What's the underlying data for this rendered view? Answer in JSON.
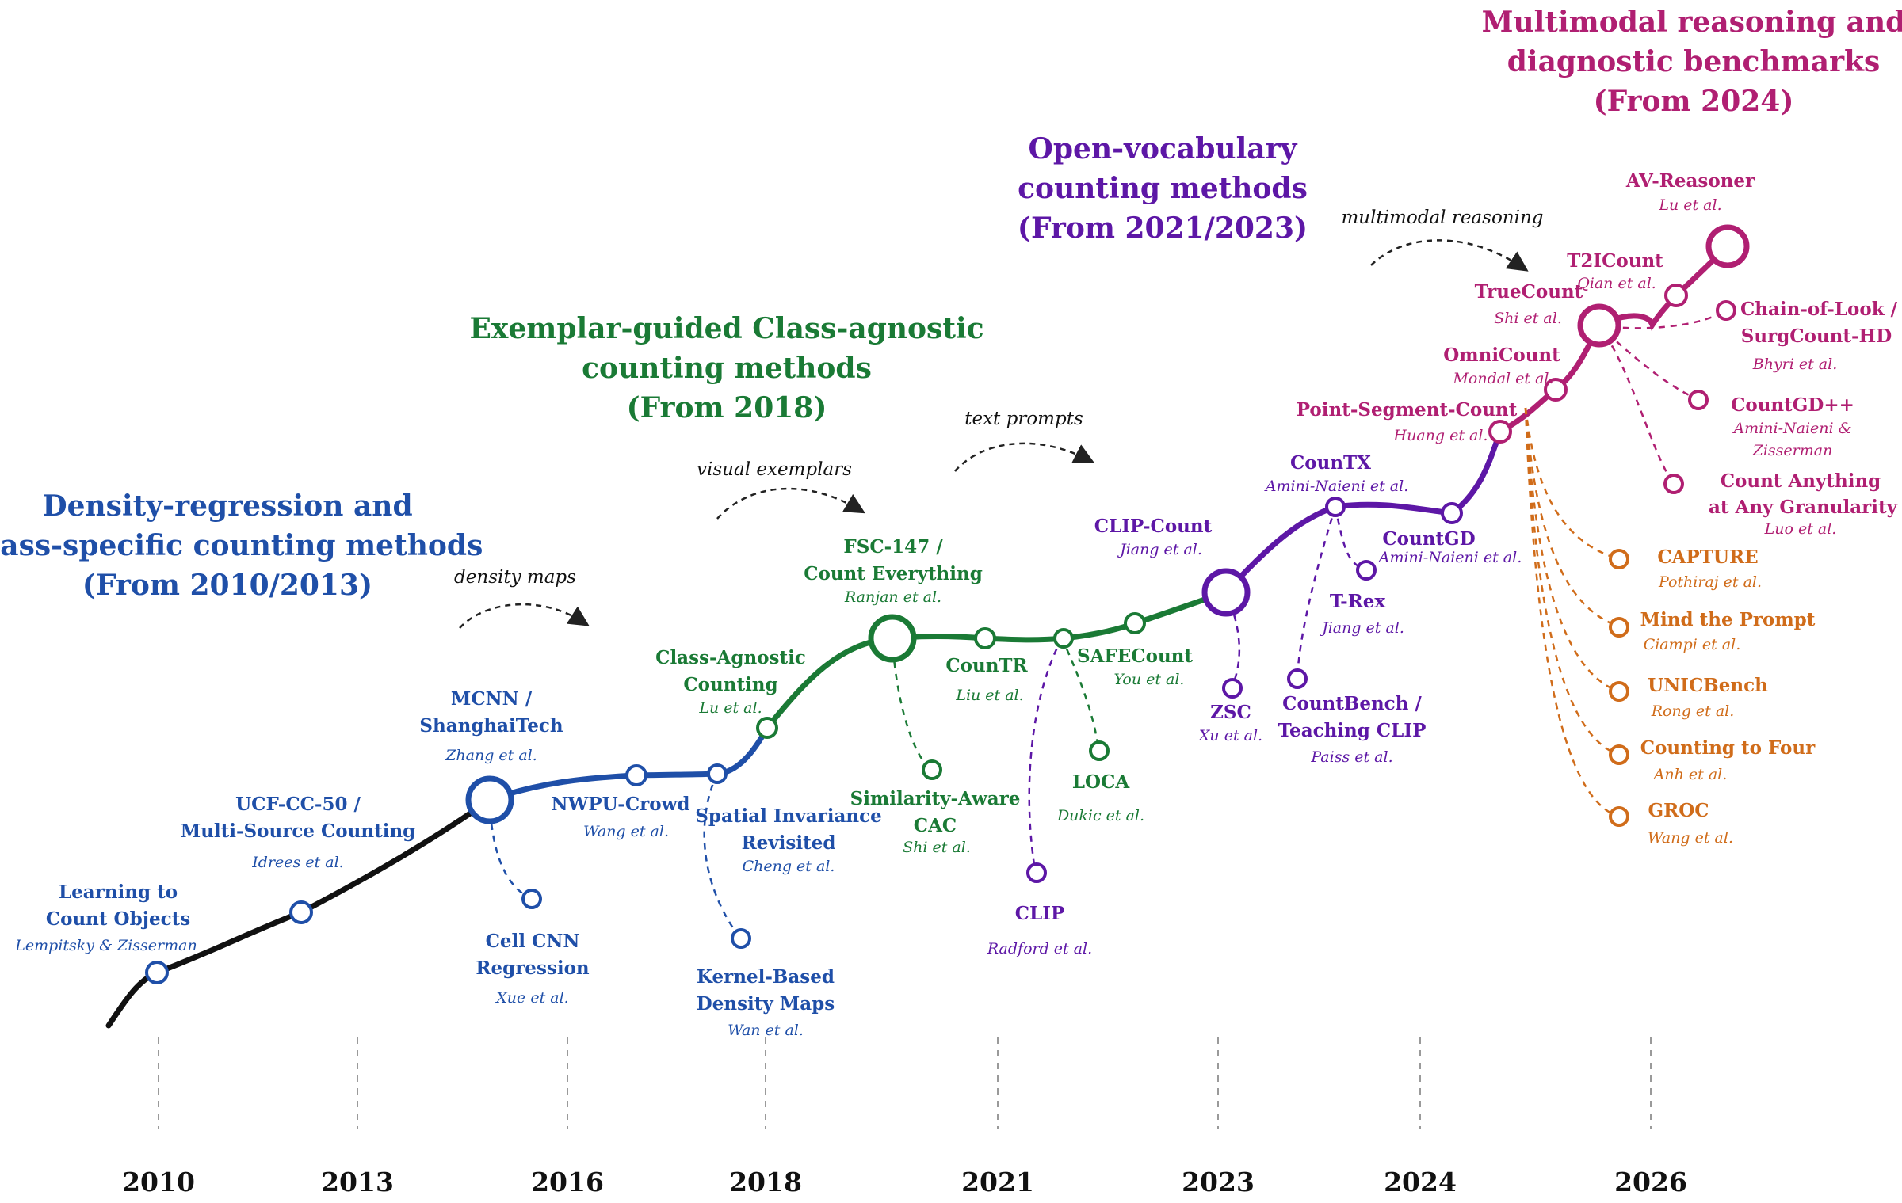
{
  "colors": {
    "blue": "#1f4fa8",
    "green": "#1a7a35",
    "purple": "#5d17a6",
    "magenta": "#b01f72",
    "orange": "#d06c1a",
    "black": "#111111",
    "grid": "#9a9a9a"
  },
  "stage_titles": {
    "density": [
      "Density-regression and",
      "class-specific counting methods",
      "(From 2010/2013)"
    ],
    "exemplar": [
      "Exemplar-guided Class-agnostic",
      "counting methods",
      "(From 2018)"
    ],
    "open_vocab": [
      "Open-vocabulary",
      "counting methods",
      "(From 2021/2023)"
    ],
    "multimodal": [
      "Multimodal reasoning and",
      "diagnostic benchmarks",
      "(From 2024)"
    ]
  },
  "hints": {
    "density_maps": "density maps",
    "visual_exemplars": "visual exemplars",
    "text_prompts": "text prompts",
    "multimodal_reasoning": "multimodal reasoning"
  },
  "years": [
    "2010",
    "2013",
    "2016",
    "2018",
    "2021",
    "2023",
    "2024",
    "2026"
  ],
  "methods": {
    "learning_to_count": {
      "name": [
        "Learning to",
        "Count Objects"
      ],
      "authors": "Lempitsky & Zisserman"
    },
    "ucf_cc_50": {
      "name": [
        "UCF-CC-50 /",
        "Multi-Source Counting"
      ],
      "authors": "Idrees et al."
    },
    "mcnn": {
      "name": [
        "MCNN /",
        "ShanghaiTech"
      ],
      "authors": "Zhang et al."
    },
    "cell_cnn": {
      "name": [
        "Cell CNN",
        "Regression"
      ],
      "authors": "Xue et al."
    },
    "nwpu_crowd": {
      "name": [
        "NWPU-Crowd"
      ],
      "authors": "Wang et al."
    },
    "spatial_invariance": {
      "name": [
        "Spatial Invariance",
        "Revisited"
      ],
      "authors": "Cheng et al."
    },
    "kernel_density": {
      "name": [
        "Kernel-Based",
        "Density Maps"
      ],
      "authors": "Wan et al."
    },
    "class_agnostic": {
      "name": [
        "Class-Agnostic",
        "Counting"
      ],
      "authors": "Lu et al."
    },
    "fsc147": {
      "name": [
        "FSC-147 /",
        "Count Everything"
      ],
      "authors": "Ranjan et al."
    },
    "similarity_aware": {
      "name": [
        "Similarity-Aware",
        "CAC"
      ],
      "authors": "Shi et al."
    },
    "countr": {
      "name": [
        "CounTR"
      ],
      "authors": "Liu et al."
    },
    "loca": {
      "name": [
        "LOCA"
      ],
      "authors": "Dukic et al."
    },
    "clip": {
      "name": [
        "CLIP"
      ],
      "authors": "Radford et al."
    },
    "safecount": {
      "name": [
        "SAFECount"
      ],
      "authors": "You et al."
    },
    "clip_count": {
      "name": [
        "CLIP-Count"
      ],
      "authors": "Jiang et al."
    },
    "zsc": {
      "name": [
        "ZSC"
      ],
      "authors": "Xu et al."
    },
    "countbench": {
      "name": [
        "CountBench /",
        "Teaching CLIP"
      ],
      "authors": "Paiss et al."
    },
    "countx": {
      "name": [
        "CounTX"
      ],
      "authors": "Amini-Naieni et al."
    },
    "trex": {
      "name": [
        "T-Rex"
      ],
      "authors": "Jiang et al."
    },
    "countgd": {
      "name": [
        "CountGD"
      ],
      "authors": "Amini-Naieni et al."
    },
    "point_segment": {
      "name": [
        "Point-Segment-Count"
      ],
      "authors": "Huang et al."
    },
    "omnicount": {
      "name": [
        "OmniCount"
      ],
      "authors": "Mondal et al."
    },
    "truecount": {
      "name": [
        "TrueCount"
      ],
      "authors": "Shi et al."
    },
    "t2icount": {
      "name": [
        "T2ICount"
      ],
      "authors": "Qian et al."
    },
    "av_reasoner": {
      "name": [
        "AV-Reasoner"
      ],
      "authors": "Lu et al."
    },
    "chain_of_look": {
      "name": [
        "Chain-of-Look /",
        "SurgCount-HD"
      ],
      "authors": "Bhyri et al."
    },
    "countgd_pp": {
      "name": [
        "CountGD++"
      ],
      "authors": [
        "Amini-Naieni &",
        "Zisserman"
      ]
    },
    "count_anything": {
      "name": [
        "Count Anything",
        "at Any Granularity"
      ],
      "authors": "Luo et al."
    },
    "capture": {
      "name": [
        "CAPTURE"
      ],
      "authors": "Pothiraj et al."
    },
    "mind_the_prompt": {
      "name": [
        "Mind the Prompt"
      ],
      "authors": "Ciampi et al."
    },
    "unicbench": {
      "name": [
        "UNICBench"
      ],
      "authors": "Rong et al."
    },
    "counting_to_four": {
      "name": [
        "Counting to Four"
      ],
      "authors": "Anh et al."
    },
    "groc": {
      "name": [
        "GROC"
      ],
      "authors": "Wang et al."
    }
  }
}
